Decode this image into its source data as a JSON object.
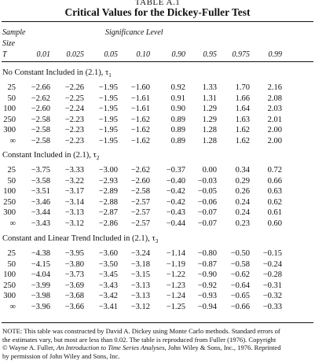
{
  "table_label": "TABLE A.1",
  "title": "Critical Values for the Dickey-Fuller Test",
  "header": {
    "sample": "Sample",
    "size": "Size",
    "t": "T",
    "significance": "Significance Level",
    "levels": [
      "0.01",
      "0.025",
      "0.05",
      "0.10",
      "0.90",
      "0.95",
      "0.975",
      "0.99"
    ]
  },
  "sections": [
    {
      "label": "No Constant Included in (2.1), ",
      "tau": "τ",
      "sub": "1",
      "rows": [
        {
          "size": "25",
          "values": [
            "−2.66",
            "−2.26",
            "−1.95",
            "−1.60",
            "0.92",
            "1.33",
            "1.70",
            "2.16"
          ]
        },
        {
          "size": "50",
          "values": [
            "−2.62",
            "−2.25",
            "−1.95",
            "−1.61",
            "0.91",
            "1.31",
            "1.66",
            "2.08"
          ]
        },
        {
          "size": "100",
          "values": [
            "−2.60",
            "−2.24",
            "−1.95",
            "−1.61",
            "0.90",
            "1.29",
            "1.64",
            "2.03"
          ]
        },
        {
          "size": "250",
          "values": [
            "−2.58",
            "−2.23",
            "−1.95",
            "−1.62",
            "0.89",
            "1.29",
            "1.63",
            "2.01"
          ]
        },
        {
          "size": "300",
          "values": [
            "−2.58",
            "−2.23",
            "−1.95",
            "−1.62",
            "0.89",
            "1.28",
            "1.62",
            "2.00"
          ]
        },
        {
          "size": "∞",
          "values": [
            "−2.58",
            "−2.23",
            "−1.95",
            "−1.62",
            "0.89",
            "1.28",
            "1.62",
            "2.00"
          ]
        }
      ]
    },
    {
      "label": "Constant Included in (2.1), ",
      "tau": "τ",
      "sub": "2",
      "rows": [
        {
          "size": "25",
          "values": [
            "−3.75",
            "−3.33",
            "−3.00",
            "−2.62",
            "−0.37",
            "0.00",
            "0.34",
            "0.72"
          ]
        },
        {
          "size": "50",
          "values": [
            "−3.58",
            "−3.22",
            "−2.93",
            "−2.60",
            "−0.40",
            "−0.03",
            "0.29",
            "0.66"
          ]
        },
        {
          "size": "100",
          "values": [
            "−3.51",
            "−3.17",
            "−2.89",
            "−2.58",
            "−0.42",
            "−0.05",
            "0.26",
            "0.63"
          ]
        },
        {
          "size": "250",
          "values": [
            "−3.46",
            "−3.14",
            "−2.88",
            "−2.57",
            "−0.42",
            "−0.06",
            "0.24",
            "0.62"
          ]
        },
        {
          "size": "300",
          "values": [
            "−3.44",
            "−3.13",
            "−2.87",
            "−2.57",
            "−0.43",
            "−0.07",
            "0.24",
            "0.61"
          ]
        },
        {
          "size": "∞",
          "values": [
            "−3.43",
            "−3.12",
            "−2.86",
            "−2.57",
            "−0.44",
            "−0.07",
            "0.23",
            "0.60"
          ]
        }
      ]
    },
    {
      "label": "Constant and Linear Trend Included in (2.1), ",
      "tau": "τ",
      "sub": "3",
      "rows": [
        {
          "size": "25",
          "values": [
            "−4.38",
            "−3.95",
            "−3.60",
            "−3.24",
            "−1.14",
            "−0.80",
            "−0.50",
            "−0.15"
          ]
        },
        {
          "size": "50",
          "values": [
            "−4.15",
            "−3.80",
            "−3.50",
            "−3.18",
            "−1.19",
            "−0.87",
            "−0.58",
            "−0.24"
          ]
        },
        {
          "size": "100",
          "values": [
            "−4.04",
            "−3.73",
            "−3.45",
            "−3.15",
            "−1.22",
            "−0.90",
            "−0.62",
            "−0.28"
          ]
        },
        {
          "size": "250",
          "values": [
            "−3.99",
            "−3.69",
            "−3.43",
            "−3.13",
            "−1.23",
            "−0.92",
            "−0.64",
            "−0.31"
          ]
        },
        {
          "size": "300",
          "values": [
            "−3.98",
            "−3.68",
            "−3.42",
            "−3.13",
            "−1.24",
            "−0.93",
            "−0.65",
            "−0.32"
          ]
        },
        {
          "size": "∞",
          "values": [
            "−3.96",
            "−3.66",
            "−3.41",
            "−3.12",
            "−1.25",
            "−0.94",
            "−0.66",
            "−0.33"
          ]
        }
      ]
    }
  ],
  "note": {
    "line1": "NOTE: This table was constructed by David A. Dickey using Monte Carlo methods. Standard errors of",
    "line2": "the estimates vary, but most are less than 0.02. The table is reproduced from Fuller (1976). Copyright",
    "line3_pre": "© Wayne A. Fuller, ",
    "line3_ital": "An Introduction to Time Series Analyses,",
    "line3_post": " John Wiley & Sons, Inc., 1976. Reprinted",
    "line4": "by permission of John Wiley and Sons, Inc."
  }
}
